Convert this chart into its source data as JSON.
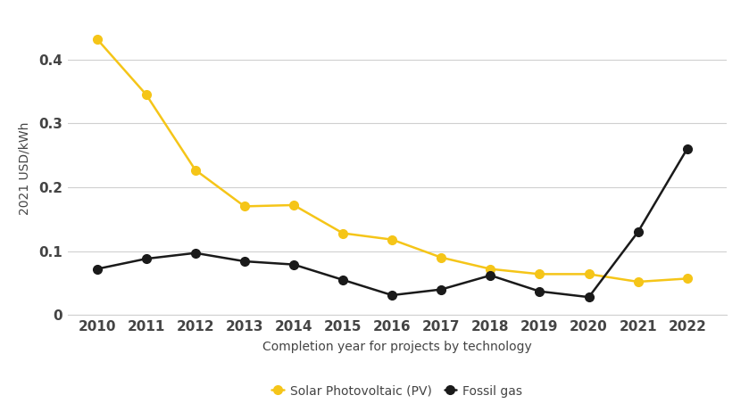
{
  "years": [
    2010,
    2011,
    2012,
    2013,
    2014,
    2015,
    2016,
    2017,
    2018,
    2019,
    2020,
    2021,
    2022
  ],
  "solar_pv": [
    0.432,
    0.345,
    0.227,
    0.17,
    0.172,
    0.128,
    0.118,
    0.09,
    0.072,
    0.064,
    0.064,
    0.052,
    0.057
  ],
  "fossil_gas": [
    0.072,
    0.088,
    0.097,
    0.084,
    0.079,
    0.055,
    0.031,
    0.04,
    0.062,
    0.037,
    0.028,
    0.13,
    0.26
  ],
  "solar_color": "#F5C518",
  "fossil_color": "#1a1a1a",
  "xlabel": "Completion year for projects by technology",
  "ylabel": "2021 USD/kWh",
  "ylim": [
    0,
    0.46
  ],
  "yticks": [
    0,
    0.1,
    0.2,
    0.3,
    0.4
  ],
  "ytick_labels": [
    "0",
    "0.1",
    "0.2",
    "0.3",
    "0.4"
  ],
  "legend_solar": "Solar Photovoltaic (PV)",
  "legend_fossil": "Fossil gas",
  "background_color": "#ffffff",
  "grid_color": "#d0d0d0",
  "marker_size": 7,
  "line_width": 1.8,
  "tick_fontsize": 11,
  "label_fontsize": 10,
  "tick_color": "#444444",
  "label_color": "#444444"
}
